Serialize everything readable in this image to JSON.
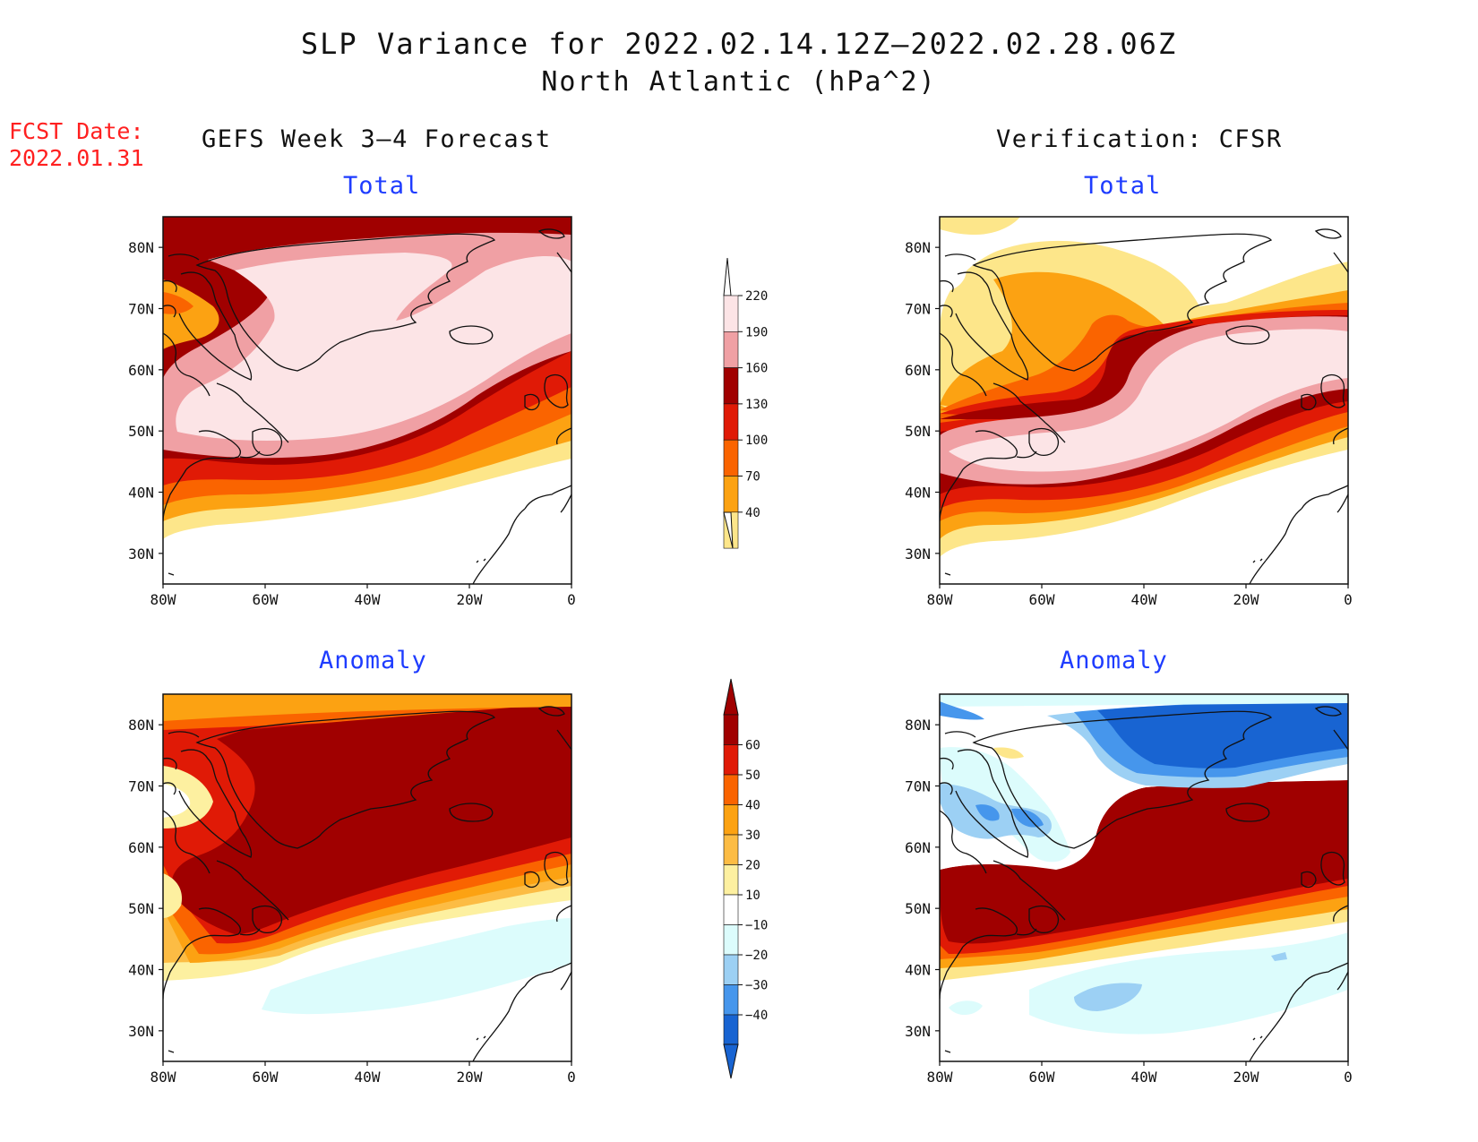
{
  "title": "SLP Variance for 2022.02.14.12Z–2022.02.28.06Z",
  "subtitle": "North Atlantic (hPa^2)",
  "fcst_label": "FCST Date:",
  "fcst_date": "2022.01.31",
  "left_column_title": "GEFS Week 3–4 Forecast",
  "right_column_title": "Verification: CFSR",
  "panels": {
    "top_left": "Total",
    "top_right": "Total",
    "bottom_left": "Anomaly",
    "bottom_right": "Anomaly"
  },
  "map": {
    "lon_ticks": [
      "80W",
      "60W",
      "40W",
      "20W",
      "0"
    ],
    "lat_ticks": [
      "80N",
      "70N",
      "60N",
      "50N",
      "40N",
      "30N"
    ],
    "lon_range": [
      -80,
      0
    ],
    "lat_range": [
      25,
      85
    ]
  },
  "total_colorbar": {
    "labels": [
      "220",
      "190",
      "160",
      "130",
      "100",
      "70",
      "40"
    ],
    "colors": [
      "#fce4e6",
      "#f0a0a4",
      "#a00000",
      "#e01a06",
      "#fa6400",
      "#fca212",
      "#fde68a"
    ]
  },
  "anomaly_colorbar": {
    "labels": [
      "60",
      "50",
      "40",
      "30",
      "20",
      "10",
      "−10",
      "−20",
      "−30",
      "−40"
    ],
    "colors": [
      "#a00000",
      "#e01a06",
      "#fa6400",
      "#fca212",
      "#fcbc44",
      "#fdf0a0",
      "#ffffff",
      "#dcfcfc",
      "#9cd0f4",
      "#4696ec",
      "#1864d2"
    ]
  }
}
